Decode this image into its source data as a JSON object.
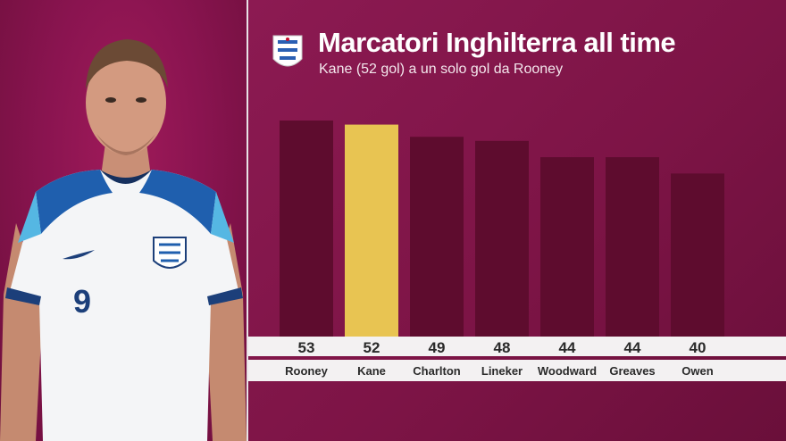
{
  "header": {
    "title": "Marcatori Inghilterra all time",
    "subtitle": "Kane (52 gol) a un solo gol da Rooney"
  },
  "colors": {
    "background": "#7e1246",
    "bar": "#5e0c2e",
    "highlight_bar": "#e8c452",
    "band": "#f3f1f2",
    "label_text": "#2a2a2a"
  },
  "icons": {
    "crest": "england-three-lions-crest-icon"
  },
  "photo": {
    "subject": "player-photo",
    "shirt_number": "9"
  },
  "chart_data": {
    "type": "bar",
    "categories": [
      "Rooney",
      "Kane",
      "Charlton",
      "Lineker",
      "Woodward",
      "Greaves",
      "Owen"
    ],
    "values": [
      53,
      52,
      49,
      48,
      44,
      44,
      40
    ],
    "highlight": "Kane",
    "title": "Marcatori Inghilterra all time",
    "subtitle": "Kane (52 gol) a un solo gol da Rooney",
    "xlabel": "",
    "ylabel": "",
    "grid": false,
    "legend": "none"
  }
}
